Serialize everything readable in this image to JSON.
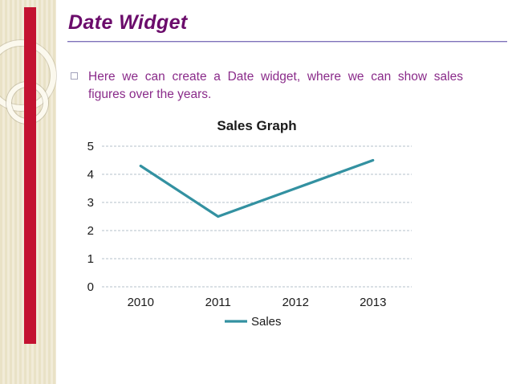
{
  "slide": {
    "title": "Date Widget",
    "bullet_text": "Here we can create a Date widget, where we can show sales figures over the years.",
    "accent_colors": {
      "title_text": "#6b0c6b",
      "body_text": "#8a2b8a",
      "red_accent_bar": "#c31230",
      "side_strip": "#e9e2c6",
      "title_rule": "#7e72b8"
    }
  },
  "chart_data": {
    "type": "line",
    "title": "Sales Graph",
    "categories": [
      "2010",
      "2011",
      "2012",
      "2013"
    ],
    "series": [
      {
        "name": "Sales",
        "values": [
          4.3,
          2.5,
          3.5,
          4.5
        ]
      }
    ],
    "xlabel": "",
    "ylabel": "",
    "ylim": [
      0,
      5
    ],
    "yticks": [
      0,
      1,
      2,
      3,
      4,
      5
    ],
    "grid": true,
    "gridline_color": "#b5c1cb",
    "line_color": "#3391a1",
    "legend_position": "bottom"
  }
}
